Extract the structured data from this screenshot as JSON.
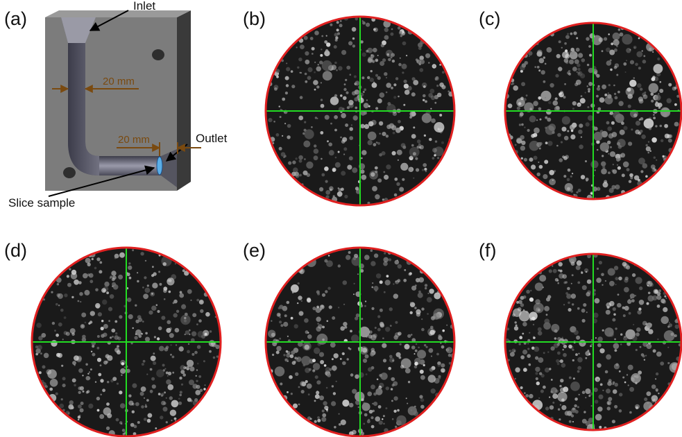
{
  "panels": [
    {
      "label": "(a)"
    },
    {
      "label": "(b)"
    },
    {
      "label": "(c)"
    },
    {
      "label": "(d)"
    },
    {
      "label": "(e)"
    },
    {
      "label": "(f)"
    }
  ],
  "diagram": {
    "inlet": "Inlet",
    "outlet": "Outlet",
    "width_vertical": "20 mm",
    "width_horizontal": "20 mm",
    "slice": "Slice sample"
  }
}
